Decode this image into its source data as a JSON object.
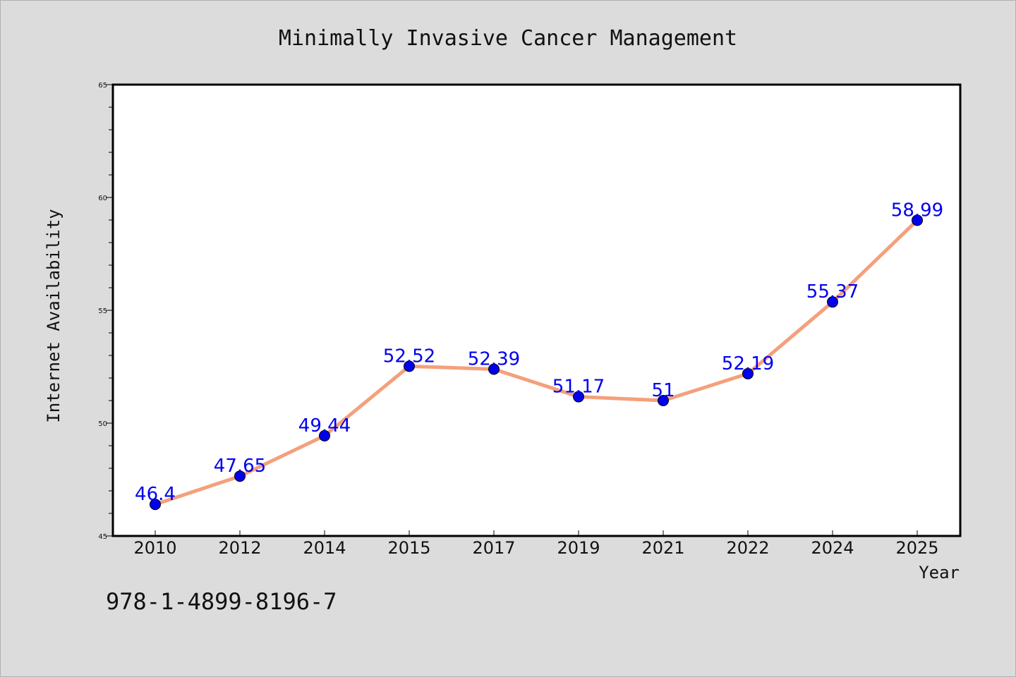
{
  "chart_data": {
    "type": "line",
    "title": "Minimally Invasive Cancer Management",
    "xlabel": "Year",
    "ylabel": "Internet Availability",
    "categories": [
      "2010",
      "2012",
      "2014",
      "2015",
      "2017",
      "2019",
      "2021",
      "2022",
      "2024",
      "2025"
    ],
    "series": [
      {
        "values": [
          46.4,
          47.65,
          49.44,
          52.52,
          52.39,
          51.17,
          51,
          52.19,
          55.37,
          58.99
        ],
        "labels": [
          "46.4",
          "47.65",
          "49.44",
          "52.52",
          "52.39",
          "51.17",
          "51",
          "52.19",
          "55.37",
          "58.99"
        ]
      }
    ],
    "ylim": [
      45,
      65
    ],
    "yticks": [
      "45",
      "50",
      "55",
      "60",
      "65"
    ],
    "grid": false,
    "legend": "none",
    "colors": {
      "line": "#f4a07c",
      "marker": "#0000ee",
      "data_label": "#0000ee",
      "plot_background": "#ffffff",
      "page_background": "#dcdcdc"
    }
  },
  "annotation": "978-1-4899-8196-7"
}
